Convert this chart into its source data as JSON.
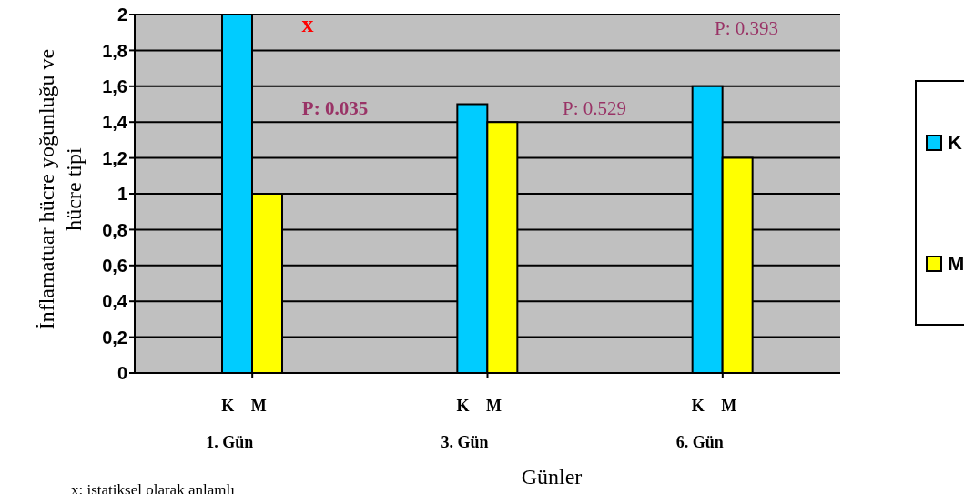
{
  "chart_data": {
    "type": "bar",
    "categories": [
      "1. Gün",
      "3. Gün",
      "6. Gün"
    ],
    "series": [
      {
        "name": "K",
        "color": "#00ccff",
        "values": [
          2,
          1.5,
          1.6
        ]
      },
      {
        "name": "M",
        "color": "#ffff00",
        "values": [
          1,
          1.4,
          1.2
        ]
      }
    ],
    "xlabel": "Günler",
    "ylabel": "İnflamatuar hücre yoğunluğu ve hücre tipi",
    "ylim": [
      0,
      2
    ],
    "yticks": [
      0,
      {
        "value": 0.2,
        "label": "0,2"
      },
      {
        "value": 0.4,
        "label": "0,4"
      },
      {
        "value": 0.6,
        "label": "0,6"
      },
      {
        "value": 0.8,
        "label": "0,8"
      },
      1,
      {
        "value": 1.2,
        "label": "1,2"
      },
      {
        "value": 1.4,
        "label": "1,4"
      },
      {
        "value": 1.6,
        "label": "1,6"
      },
      {
        "value": 1.8,
        "label": "1,8"
      },
      2
    ],
    "grid": "y",
    "legend": "right",
    "annotations": [
      "x",
      "P: 0.035",
      "P: 0.529",
      "P: 0.393",
      "x: istatiksel olarak anlamlı"
    ]
  }
}
